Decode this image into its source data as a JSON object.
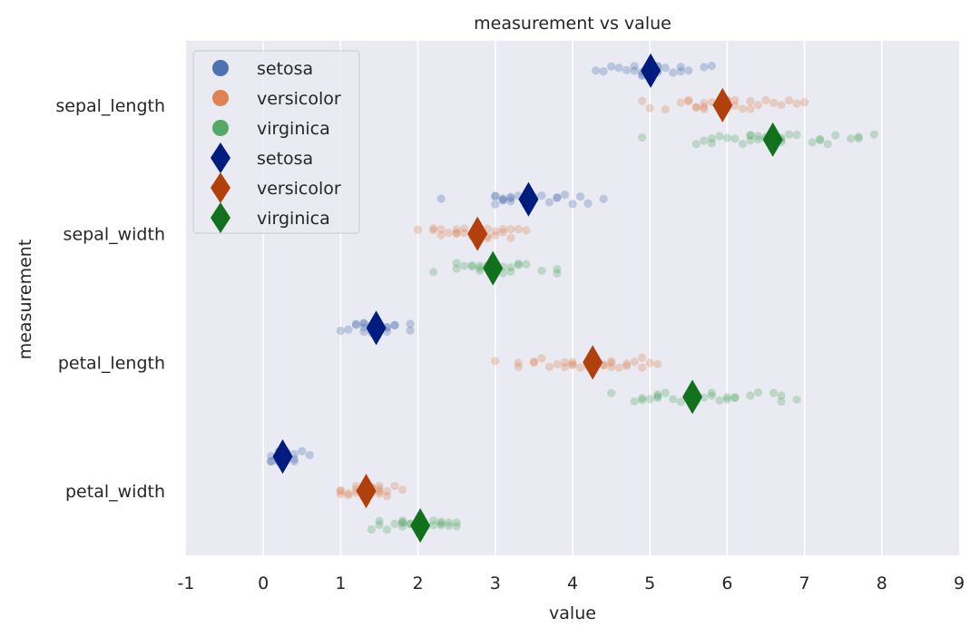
{
  "chart_data": {
    "type": "scatter",
    "title": "measurement vs value",
    "xlabel": "value",
    "ylabel": "measurement",
    "xlim": [
      -1,
      9
    ],
    "xticks": [
      -1,
      0,
      1,
      2,
      3,
      4,
      5,
      6,
      7,
      8,
      9
    ],
    "categories": [
      "sepal_length",
      "sepal_width",
      "petal_length",
      "petal_width"
    ],
    "grid": "vertical",
    "legend_position": "top-left",
    "background": "#eaeaf2",
    "species": [
      {
        "name": "setosa",
        "point_color": "#4c72b0",
        "mean_color": "#001c7f",
        "means": [
          5.01,
          3.43,
          1.46,
          0.25
        ],
        "points": [
          [
            4.3,
            4.4,
            4.5,
            4.6,
            4.7,
            4.8,
            4.8,
            4.9,
            4.9,
            5.0,
            5.0,
            5.0,
            5.1,
            5.1,
            5.1,
            5.2,
            5.3,
            5.4,
            5.4,
            5.5,
            5.7,
            5.8,
            5.0,
            4.9,
            5.1
          ],
          [
            2.3,
            3.0,
            3.0,
            3.1,
            3.1,
            3.2,
            3.2,
            3.3,
            3.4,
            3.4,
            3.4,
            3.5,
            3.5,
            3.6,
            3.7,
            3.8,
            3.8,
            3.9,
            4.0,
            4.1,
            4.2,
            4.4,
            3.0,
            3.1,
            3.2
          ],
          [
            1.0,
            1.1,
            1.2,
            1.2,
            1.3,
            1.3,
            1.3,
            1.4,
            1.4,
            1.4,
            1.4,
            1.5,
            1.5,
            1.5,
            1.5,
            1.6,
            1.6,
            1.6,
            1.7,
            1.7,
            1.9,
            1.9,
            1.4,
            1.5,
            1.3
          ],
          [
            0.1,
            0.1,
            0.2,
            0.2,
            0.2,
            0.2,
            0.2,
            0.2,
            0.2,
            0.3,
            0.3,
            0.3,
            0.4,
            0.4,
            0.4,
            0.5,
            0.6,
            0.2,
            0.2,
            0.3,
            0.2,
            0.1,
            0.2,
            0.3,
            0.2
          ]
        ]
      },
      {
        "name": "versicolor",
        "point_color": "#dd8452",
        "mean_color": "#b1400d",
        "means": [
          5.94,
          2.77,
          4.26,
          1.33
        ],
        "points": [
          [
            4.9,
            5.0,
            5.2,
            5.4,
            5.5,
            5.5,
            5.6,
            5.6,
            5.7,
            5.7,
            5.8,
            5.9,
            5.9,
            6.0,
            6.0,
            6.1,
            6.1,
            6.2,
            6.3,
            6.3,
            6.4,
            6.5,
            6.6,
            6.7,
            6.8,
            6.9,
            7.0,
            5.7,
            6.0
          ],
          [
            2.0,
            2.2,
            2.2,
            2.3,
            2.3,
            2.4,
            2.5,
            2.5,
            2.6,
            2.6,
            2.7,
            2.7,
            2.8,
            2.8,
            2.9,
            2.9,
            3.0,
            3.0,
            3.1,
            3.1,
            3.2,
            3.2,
            3.3,
            3.4,
            2.8,
            2.9,
            2.7,
            2.5
          ],
          [
            3.0,
            3.3,
            3.3,
            3.5,
            3.5,
            3.6,
            3.7,
            3.8,
            3.9,
            3.9,
            4.0,
            4.0,
            4.1,
            4.2,
            4.2,
            4.3,
            4.4,
            4.4,
            4.5,
            4.5,
            4.6,
            4.7,
            4.7,
            4.8,
            4.9,
            4.9,
            5.0,
            5.1,
            4.5,
            4.0
          ],
          [
            1.0,
            1.0,
            1.0,
            1.1,
            1.1,
            1.2,
            1.2,
            1.3,
            1.3,
            1.3,
            1.3,
            1.4,
            1.4,
            1.4,
            1.5,
            1.5,
            1.5,
            1.6,
            1.6,
            1.7,
            1.8,
            1.3,
            1.2,
            1.4,
            1.5
          ]
        ]
      },
      {
        "name": "virginica",
        "point_color": "#55a868",
        "mean_color": "#12711c",
        "means": [
          6.59,
          2.97,
          5.55,
          2.03
        ],
        "points": [
          [
            4.9,
            5.6,
            5.7,
            5.8,
            5.8,
            5.9,
            6.0,
            6.1,
            6.2,
            6.3,
            6.3,
            6.4,
            6.4,
            6.5,
            6.5,
            6.7,
            6.7,
            6.8,
            6.9,
            7.1,
            7.2,
            7.2,
            7.3,
            7.4,
            7.6,
            7.7,
            7.7,
            7.9,
            6.3,
            6.7
          ],
          [
            2.2,
            2.5,
            2.5,
            2.6,
            2.7,
            2.7,
            2.8,
            2.8,
            2.9,
            3.0,
            3.0,
            3.0,
            3.1,
            3.1,
            3.2,
            3.2,
            3.3,
            3.3,
            3.4,
            3.6,
            3.8,
            3.8,
            2.8,
            3.0,
            2.9
          ],
          [
            4.5,
            4.8,
            4.9,
            4.9,
            5.0,
            5.1,
            5.1,
            5.2,
            5.3,
            5.4,
            5.5,
            5.5,
            5.6,
            5.6,
            5.7,
            5.8,
            5.8,
            5.9,
            6.0,
            6.0,
            6.1,
            6.1,
            6.3,
            6.4,
            6.6,
            6.7,
            6.7,
            6.9,
            5.6,
            5.1
          ],
          [
            1.4,
            1.5,
            1.5,
            1.6,
            1.7,
            1.8,
            1.8,
            1.8,
            1.9,
            1.9,
            2.0,
            2.0,
            2.1,
            2.1,
            2.2,
            2.2,
            2.3,
            2.3,
            2.3,
            2.4,
            2.4,
            2.5,
            2.5,
            1.8,
            2.0
          ]
        ]
      }
    ],
    "legend": [
      {
        "label": "setosa",
        "kind": "point",
        "color": "#4c72b0"
      },
      {
        "label": "versicolor",
        "kind": "point",
        "color": "#dd8452"
      },
      {
        "label": "virginica",
        "kind": "point",
        "color": "#55a868"
      },
      {
        "label": "setosa",
        "kind": "diamond",
        "color": "#001c7f"
      },
      {
        "label": "versicolor",
        "kind": "diamond",
        "color": "#b1400d"
      },
      {
        "label": "virginica",
        "kind": "diamond",
        "color": "#12711c"
      }
    ]
  }
}
